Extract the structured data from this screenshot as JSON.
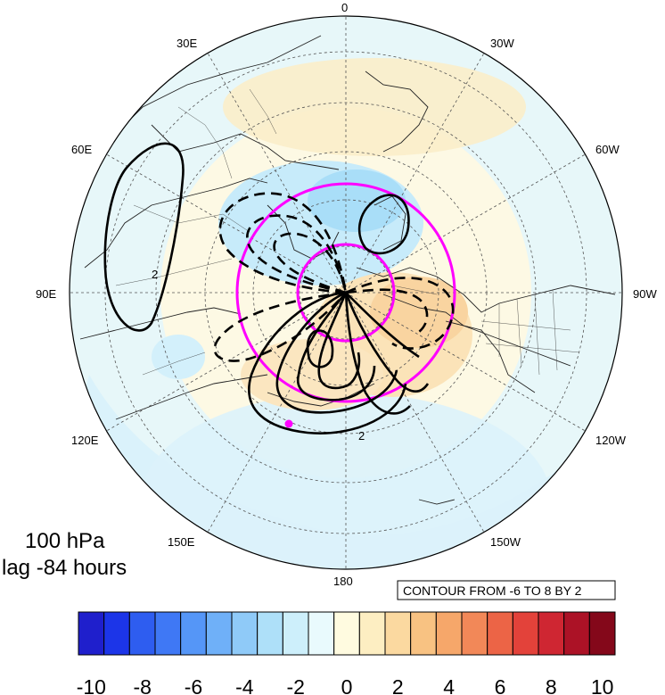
{
  "map": {
    "projection": "north-polar-stereographic",
    "meridian_labels": [
      {
        "text": "0",
        "lon": 0
      },
      {
        "text": "30W",
        "lon": -30
      },
      {
        "text": "60W",
        "lon": -60
      },
      {
        "text": "90W",
        "lon": -90
      },
      {
        "text": "120W",
        "lon": -120
      },
      {
        "text": "150W",
        "lon": -150
      },
      {
        "text": "180",
        "lon": 180
      },
      {
        "text": "150E",
        "lon": 150
      },
      {
        "text": "120E",
        "lon": 120
      },
      {
        "text": "90E",
        "lon": 90
      },
      {
        "text": "60E",
        "lon": 60
      },
      {
        "text": "30E",
        "lon": 30
      }
    ],
    "contour_labels": [
      "2",
      "2"
    ],
    "colors": {
      "positive_contour": "#000000",
      "negative_contour": "#000000",
      "reference_circles": "#ff00ff",
      "marker": "#ff00ff"
    }
  },
  "annotation": {
    "level": "100 hPa",
    "lag": "lag -84 hours"
  },
  "contour_info": "CONTOUR FROM -6 TO 8 BY 2",
  "colorbar": {
    "tick_labels": [
      "-10",
      "-8",
      "-6",
      "-4",
      "-2",
      "0",
      "2",
      "4",
      "6",
      "8",
      "10"
    ],
    "colors": [
      "#1f1fcc",
      "#1c35e8",
      "#2e5df0",
      "#3f78f5",
      "#5596f7",
      "#6fb0f8",
      "#8fcaf8",
      "#aee0f9",
      "#cdeffb",
      "#e9fafd",
      "#fffbe0",
      "#fdeec2",
      "#fbd9a0",
      "#f8c282",
      "#f6a76a",
      "#f28858",
      "#ec6446",
      "#e3423a",
      "#cf2632",
      "#ac1226",
      "#84081a"
    ]
  }
}
